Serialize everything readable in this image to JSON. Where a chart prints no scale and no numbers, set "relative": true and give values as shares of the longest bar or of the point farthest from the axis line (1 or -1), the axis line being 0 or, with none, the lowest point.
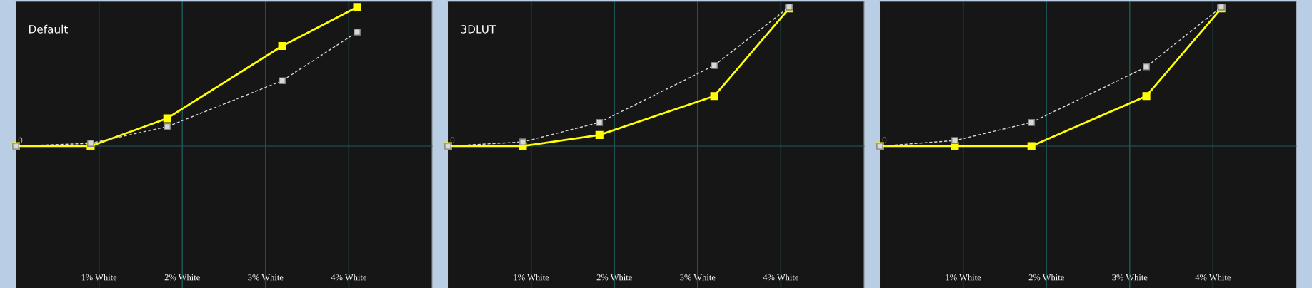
{
  "chart_data": [
    {
      "type": "line",
      "title": "Default",
      "relative": true,
      "x": [
        0,
        0.9,
        1.82,
        3.2,
        4.1
      ],
      "xlim": [
        0,
        5
      ],
      "xticks": [
        {
          "value": 1,
          "label": "1% White"
        },
        {
          "value": 2,
          "label": "2% White"
        },
        {
          "value": 3,
          "label": "3% White"
        },
        {
          "value": 4,
          "label": "4% White"
        }
      ],
      "grid": "x",
      "marker": "square",
      "series": [
        {
          "color": "#d8d8d8",
          "line_style": "dashed",
          "values": [
            0,
            0.02,
            0.14,
            0.47,
            0.82
          ]
        },
        {
          "color": "#ffff00",
          "line_style": "solid",
          "values": [
            0,
            0,
            0.2,
            0.72,
            1
          ]
        }
      ],
      "annotations": [
        "0"
      ]
    },
    {
      "type": "line",
      "title": "3DLUT",
      "relative": true,
      "x": [
        0,
        0.9,
        1.82,
        3.2,
        4.1
      ],
      "xlim": [
        0,
        5
      ],
      "xticks": [
        {
          "value": 1,
          "label": "1% White"
        },
        {
          "value": 2,
          "label": "2% White"
        },
        {
          "value": 3,
          "label": "3% White"
        },
        {
          "value": 4,
          "label": "4% White"
        }
      ],
      "grid": "x",
      "marker": "square",
      "series": [
        {
          "color": "#d8d8d8",
          "line_style": "dashed",
          "values": [
            0,
            0.03,
            0.17,
            0.58,
            1
          ]
        },
        {
          "color": "#ffff00",
          "line_style": "solid",
          "values": [
            0,
            0,
            0.08,
            0.36,
            0.99
          ]
        }
      ],
      "annotations": [
        "0"
      ]
    },
    {
      "type": "line",
      "relative": true,
      "x": [
        0,
        0.9,
        1.82,
        3.2,
        4.1
      ],
      "xlim": [
        0,
        5
      ],
      "xticks": [
        {
          "value": 1,
          "label": "1% White"
        },
        {
          "value": 2,
          "label": "2% White"
        },
        {
          "value": 3,
          "label": "3% White"
        },
        {
          "value": 4,
          "label": "4% White"
        }
      ],
      "grid": "x",
      "marker": "square",
      "series": [
        {
          "color": "#d8d8d8",
          "line_style": "dashed",
          "values": [
            0,
            0.04,
            0.17,
            0.57,
            1
          ]
        },
        {
          "color": "#ffff00",
          "line_style": "solid",
          "values": [
            0,
            0,
            0,
            0.36,
            0.99
          ]
        }
      ],
      "annotations": [
        "0"
      ]
    }
  ]
}
